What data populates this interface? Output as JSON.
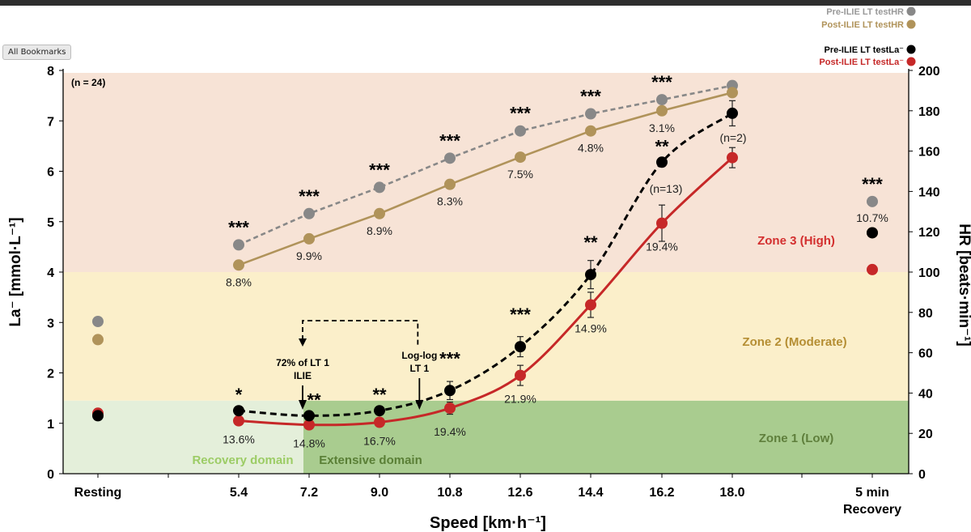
{
  "window": {
    "bookmarks_label": "All Bookmarks"
  },
  "chart_data": {
    "type": "line",
    "sample_note": "(n = 24)",
    "xlabel": "Speed [km·h⁻¹]",
    "ylabel_left": "La⁻ [mmol·L⁻¹]",
    "ylabel_right": "HR [beats·min⁻¹]",
    "categories": [
      "Resting",
      "5.4",
      "7.2",
      "9.0",
      "10.8",
      "12.6",
      "14.4",
      "16.2",
      "18.0",
      "5 min Recovery"
    ],
    "category_lines": [
      [
        "Resting"
      ],
      [
        "5.4"
      ],
      [
        "7.2"
      ],
      [
        "9.0"
      ],
      [
        "10.8"
      ],
      [
        "12.6"
      ],
      [
        "14.4"
      ],
      [
        "16.2"
      ],
      [
        "18.0"
      ],
      [
        "5 min",
        "Recovery"
      ]
    ],
    "ylim_left": [
      0,
      8
    ],
    "ylim_right": [
      0,
      200
    ],
    "yticks_left": [
      0,
      1,
      2,
      3,
      4,
      5,
      6,
      7,
      8
    ],
    "yticks_right": [
      0,
      20,
      40,
      60,
      80,
      100,
      120,
      140,
      160,
      180,
      200
    ],
    "zones": [
      {
        "name": "Zone 1 (Low)",
        "from": 0,
        "to": 1.45,
        "color": "#c8dfb6",
        "label_color": "#5f7f3c"
      },
      {
        "name": "Zone 2 (Moderate)",
        "from": 1.45,
        "to": 4.0,
        "color": "#fbefca",
        "label_color": "#b58e33"
      },
      {
        "name": "Zone 3 (High)",
        "from": 4.0,
        "to": 7.9,
        "color": "#f7e3d6",
        "label_color": "#d32f2f"
      }
    ],
    "domains": [
      {
        "name": "Recovery domain",
        "from": "Resting",
        "to": "7.2",
        "color": "#e4efda",
        "label_color": "#9ccc65"
      },
      {
        "name": "Extensive domain",
        "from": "7.2",
        "to": "18.0+",
        "color": "#a9cc8f",
        "label_color": "#5a7f36"
      }
    ],
    "series": [
      {
        "name": "Pre-ILIE LT testHR",
        "axis": "right",
        "color": "#888888",
        "dash": true,
        "values": [
          75.5,
          113.5,
          129,
          142,
          156.5,
          170,
          178.5,
          185.5,
          192.5,
          135
        ],
        "connect": [
          "5.4",
          "18.0"
        ]
      },
      {
        "name": "Post-ILIE LT testHR",
        "axis": "right",
        "color": "#b0935a",
        "dash": false,
        "values": [
          66.5,
          103.5,
          116.5,
          129,
          143.5,
          157,
          170,
          180,
          189,
          119.5
        ],
        "connect": [
          "5.4",
          "18.0"
        ]
      },
      {
        "name": "Pre-ILIE LT testLa⁻",
        "axis": "left",
        "color": "#000000",
        "dash": true,
        "values": [
          1.15,
          1.25,
          1.15,
          1.25,
          1.65,
          2.52,
          3.95,
          6.18,
          7.15,
          4.78
        ],
        "errors": [
          0,
          0,
          0,
          0,
          0.18,
          0.2,
          0.28,
          0,
          0.25,
          0
        ],
        "connect": [
          "5.4",
          "18.0"
        ]
      },
      {
        "name": "Post-ILIE LT testLa⁻",
        "axis": "left",
        "color": "#c62828",
        "dash": false,
        "values": [
          1.2,
          1.05,
          0.97,
          1.02,
          1.3,
          1.95,
          3.35,
          4.97,
          6.27,
          4.05
        ],
        "errors": [
          0,
          0,
          0,
          0,
          0.12,
          0.2,
          0.25,
          0.36,
          0.2,
          0
        ],
        "connect": [
          "5.4",
          "18.0"
        ]
      }
    ],
    "hr_percent_labels": [
      {
        "category": "5.4",
        "text": "8.8%"
      },
      {
        "category": "7.2",
        "text": "9.9%"
      },
      {
        "category": "9.0",
        "text": "8.9%"
      },
      {
        "category": "10.8",
        "text": "8.3%"
      },
      {
        "category": "12.6",
        "text": "7.5%"
      },
      {
        "category": "14.4",
        "text": "4.8%"
      },
      {
        "category": "16.2",
        "text": "3.1%"
      },
      {
        "category": "5 min Recovery",
        "text": "10.7%"
      }
    ],
    "la_percent_labels": [
      {
        "category": "5.4",
        "text": "13.6%"
      },
      {
        "category": "7.2",
        "text": "14.8%"
      },
      {
        "category": "9.0",
        "text": "16.7%"
      },
      {
        "category": "10.8",
        "text": "19.4%"
      },
      {
        "category": "12.6",
        "text": "21.9%"
      },
      {
        "category": "14.4",
        "text": "14.9%"
      },
      {
        "category": "16.2",
        "text": "19.4%"
      }
    ],
    "hr_significance": [
      {
        "category": "5.4",
        "text": "***"
      },
      {
        "category": "7.2",
        "text": "***"
      },
      {
        "category": "9.0",
        "text": "***"
      },
      {
        "category": "10.8",
        "text": "***"
      },
      {
        "category": "12.6",
        "text": "***"
      },
      {
        "category": "14.4",
        "text": "***"
      },
      {
        "category": "16.2",
        "text": "***"
      },
      {
        "category": "5 min Recovery",
        "text": "***"
      }
    ],
    "la_significance": [
      {
        "category": "5.4",
        "text": "*"
      },
      {
        "category": "7.2",
        "text": "**"
      },
      {
        "category": "9.0",
        "text": "**"
      },
      {
        "category": "10.8",
        "text": "***"
      },
      {
        "category": "12.6",
        "text": "***"
      },
      {
        "category": "14.4",
        "text": "**"
      },
      {
        "category": "16.2",
        "text": "**"
      }
    ],
    "n_notes": [
      {
        "category": "16.2",
        "text": "(n=13)"
      },
      {
        "category": "18.0",
        "text": "(n=2)"
      }
    ],
    "threshold_annotations": [
      {
        "lines": [
          "72% of LT 1",
          "ILIE"
        ],
        "at_speed": 7.2
      },
      {
        "lines": [
          "Log-log",
          "LT 1"
        ],
        "at_speed": 10.0
      }
    ]
  }
}
